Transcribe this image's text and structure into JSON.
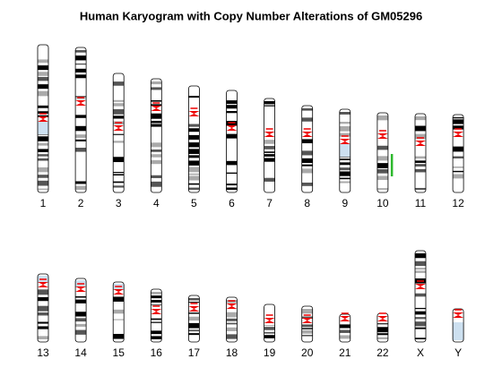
{
  "title": "Human Karyogram with Copy Number Alterations of GM05296",
  "chromosomes": {
    "top": [
      "1",
      "2",
      "3",
      "4",
      "5",
      "6",
      "7",
      "8",
      "9",
      "10",
      "11",
      "12"
    ],
    "bottom": [
      "13",
      "14",
      "15",
      "16",
      "17",
      "18",
      "19",
      "20",
      "21",
      "22",
      "X",
      "Y"
    ]
  }
}
